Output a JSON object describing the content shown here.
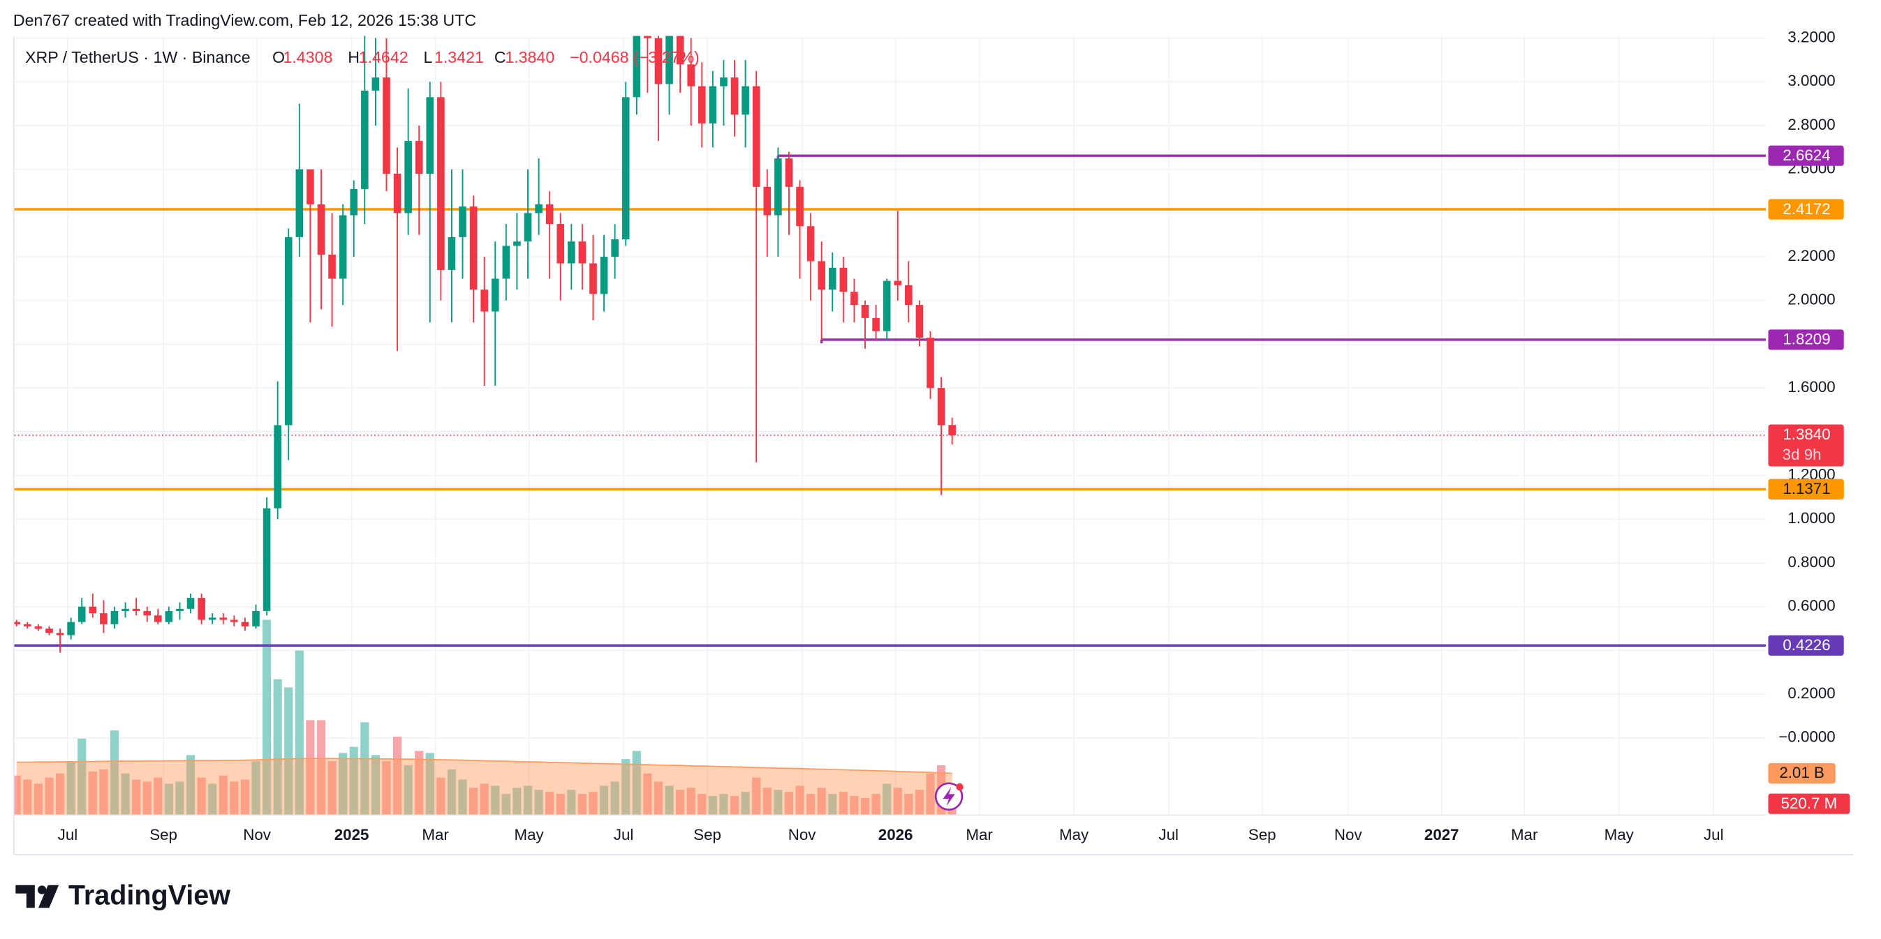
{
  "chart_data": {
    "type": "candlestick",
    "attribution": "Den767 created with TradingView.com, Feb 12, 2026 15:38 UTC",
    "title": "XRP / TetherUS · 1W · Binance",
    "ohlc_letters": [
      "O",
      "H",
      "L",
      "C"
    ],
    "ohlc_labels": [
      "1.4308",
      "1.4642",
      "1.3421",
      "1.3840"
    ],
    "change_label": "−0.0468 (−3.27%)",
    "up_color": "#089981",
    "down_color": "#f23645",
    "open": [
      0.53,
      0.52,
      0.51,
      0.5,
      0.48,
      0.47,
      0.53,
      0.6,
      0.57,
      0.52,
      0.58,
      0.59,
      0.58,
      0.56,
      0.53,
      0.58,
      0.59,
      0.64,
      0.54,
      0.55,
      0.54,
      0.53,
      0.51,
      0.58,
      1.05,
      1.43,
      2.29,
      2.6,
      2.44,
      2.21,
      2.1,
      2.39,
      2.51,
      2.96,
      3.02,
      2.58,
      2.4,
      2.73,
      2.58,
      2.93,
      2.14,
      2.29,
      2.43,
      2.05,
      1.95,
      2.1,
      2.25,
      2.27,
      2.4,
      2.44,
      2.35,
      2.17,
      2.27,
      2.17,
      2.03,
      2.2,
      2.28,
      2.93,
      3.55,
      3.2,
      2.99,
      3.28,
      3.08,
      2.98,
      2.81,
      2.98,
      3.02,
      2.85,
      2.98,
      2.52,
      2.39,
      2.65,
      2.52,
      2.34,
      2.18,
      2.05,
      2.15,
      2.04,
      1.98,
      1.92,
      1.86,
      2.09,
      2.07,
      1.98,
      1.83,
      1.6,
      1.4308
    ],
    "high": [
      0.54,
      0.53,
      0.52,
      0.51,
      0.5,
      0.55,
      0.64,
      0.66,
      0.63,
      0.6,
      0.62,
      0.64,
      0.6,
      0.59,
      0.6,
      0.62,
      0.66,
      0.66,
      0.57,
      0.57,
      0.56,
      0.55,
      0.61,
      1.1,
      1.63,
      2.33,
      2.9,
      2.6,
      2.6,
      2.4,
      2.44,
      2.55,
      3.3,
      3.2,
      3.2,
      2.7,
      2.97,
      2.8,
      3.0,
      3.0,
      2.6,
      2.6,
      2.48,
      2.2,
      2.27,
      2.35,
      2.4,
      2.6,
      2.65,
      2.5,
      2.4,
      2.35,
      2.35,
      2.3,
      2.3,
      2.35,
      3.0,
      3.66,
      3.55,
      3.33,
      3.3,
      3.34,
      3.2,
      3.09,
      3.05,
      3.1,
      3.1,
      3.1,
      3.05,
      2.6,
      2.7,
      2.68,
      2.55,
      2.4,
      2.27,
      2.22,
      2.2,
      2.1,
      2.0,
      1.98,
      2.1,
      2.41,
      2.18,
      2.0,
      1.86,
      1.65,
      1.4642
    ],
    "low": [
      0.51,
      0.5,
      0.49,
      0.47,
      0.39,
      0.45,
      0.52,
      0.55,
      0.48,
      0.5,
      0.55,
      0.56,
      0.53,
      0.52,
      0.52,
      0.54,
      0.57,
      0.52,
      0.52,
      0.52,
      0.51,
      0.49,
      0.5,
      0.56,
      1.0,
      1.27,
      2.2,
      1.9,
      1.96,
      1.88,
      1.98,
      2.2,
      2.35,
      2.8,
      2.5,
      1.77,
      2.3,
      2.3,
      1.9,
      2.0,
      1.9,
      2.1,
      1.9,
      1.61,
      1.61,
      2.0,
      2.05,
      2.1,
      2.3,
      2.1,
      2.0,
      2.05,
      2.05,
      1.91,
      1.95,
      2.1,
      2.25,
      2.85,
      2.95,
      2.73,
      2.85,
      2.95,
      2.8,
      2.7,
      2.7,
      2.8,
      2.75,
      2.7,
      1.26,
      2.2,
      2.2,
      2.3,
      2.1,
      2.0,
      1.82,
      1.95,
      1.9,
      1.9,
      1.78,
      1.82,
      1.82,
      2.0,
      1.9,
      1.79,
      1.55,
      1.11,
      1.3421
    ],
    "close": [
      0.52,
      0.51,
      0.5,
      0.48,
      0.47,
      0.53,
      0.6,
      0.57,
      0.52,
      0.58,
      0.59,
      0.58,
      0.56,
      0.53,
      0.58,
      0.59,
      0.64,
      0.54,
      0.55,
      0.54,
      0.53,
      0.51,
      0.58,
      1.05,
      1.43,
      2.29,
      2.6,
      2.44,
      2.21,
      2.1,
      2.39,
      2.51,
      2.96,
      3.02,
      2.58,
      2.4,
      2.73,
      2.58,
      2.93,
      2.14,
      2.29,
      2.43,
      2.05,
      1.95,
      2.1,
      2.25,
      2.27,
      2.4,
      2.44,
      2.35,
      2.17,
      2.27,
      2.17,
      2.03,
      2.2,
      2.28,
      2.93,
      3.55,
      3.2,
      2.99,
      3.28,
      3.08,
      2.98,
      2.81,
      2.98,
      3.02,
      2.85,
      2.98,
      2.52,
      2.39,
      2.65,
      2.52,
      2.34,
      2.18,
      2.05,
      2.15,
      2.04,
      1.98,
      1.92,
      1.86,
      2.09,
      2.07,
      1.98,
      1.83,
      1.6,
      1.43,
      1.384
    ],
    "xlim": [
      -0.2,
      160.8
    ],
    "xticks": [
      {
        "value": 4.7,
        "label": "Jul"
      },
      {
        "value": 13.5,
        "label": "Sep"
      },
      {
        "value": 22.1,
        "label": "Nov"
      },
      {
        "value": 30.8,
        "label": "2025"
      },
      {
        "value": 38.5,
        "label": "Mar"
      },
      {
        "value": 47.1,
        "label": "May"
      },
      {
        "value": 55.8,
        "label": "Jul"
      },
      {
        "value": 63.5,
        "label": "Sep"
      },
      {
        "value": 72.2,
        "label": "Nov"
      },
      {
        "value": 80.8,
        "label": "2026"
      },
      {
        "value": 88.5,
        "label": "Mar"
      },
      {
        "value": 97.2,
        "label": "May"
      },
      {
        "value": 105.9,
        "label": "Jul"
      },
      {
        "value": 114.5,
        "label": "Sep"
      },
      {
        "value": 122.4,
        "label": "Nov"
      },
      {
        "value": 131.0,
        "label": "2027"
      },
      {
        "value": 138.6,
        "label": "Mar"
      },
      {
        "value": 147.3,
        "label": "May"
      },
      {
        "value": 156.0,
        "label": "Jul"
      }
    ],
    "ylim": [
      -0.35,
      3.21
    ],
    "yticks": [
      {
        "value": 3.2,
        "label": "3.2000"
      },
      {
        "value": 3.0,
        "label": "3.0000"
      },
      {
        "value": 2.8,
        "label": "2.8000"
      },
      {
        "value": 2.6,
        "label": "2.6000"
      },
      {
        "value": 2.4,
        "label": "2.4000"
      },
      {
        "value": 2.2,
        "label": "2.2000"
      },
      {
        "value": 2.0,
        "label": "2.0000"
      },
      {
        "value": 1.8,
        "label": "1.8000"
      },
      {
        "value": 1.6,
        "label": "1.6000"
      },
      {
        "value": 1.4,
        "label": "1.4000"
      },
      {
        "value": 1.2,
        "label": "1.2000"
      },
      {
        "value": 1.0,
        "label": "1.0000"
      },
      {
        "value": 0.8,
        "label": "0.8000"
      },
      {
        "value": 0.6,
        "label": "0.6000"
      },
      {
        "value": 0.4,
        "label": "0.4000"
      },
      {
        "value": 0.2,
        "label": "0.2000"
      },
      {
        "value": 0,
        "label": "−0.0000"
      }
    ],
    "grid": true,
    "levels": [
      {
        "value": 2.6624,
        "color": "#9c27b0",
        "x_start": 70
      },
      {
        "value": 2.4172,
        "color": "#ff9800"
      },
      {
        "value": 1.8209,
        "color": "#9c27b0",
        "x_start": 74
      },
      {
        "value": 1.1371,
        "color": "#ff9800"
      },
      {
        "value": 0.4226,
        "color": "#673ab7"
      }
    ],
    "last_price": {
      "value": 1.384,
      "label": "1.3840",
      "countdown": "3d 9h",
      "color": "#f23645"
    },
    "volume": {
      "ylim": [
        0,
        38
      ],
      "up_color": "#8fd1c9",
      "down_color": "#f7a5a8",
      "ma_color": "#ff9a5c",
      "values": [
        1.9,
        1.7,
        1.5,
        1.8,
        2.0,
        2.6,
        3.7,
        2.1,
        2.2,
        4.1,
        2.0,
        1.7,
        1.6,
        1.8,
        1.5,
        1.6,
        2.9,
        1.8,
        1.5,
        1.9,
        1.6,
        1.7,
        2.6,
        9.5,
        6.6,
        6.2,
        8.0,
        4.6,
        4.6,
        2.6,
        3.0,
        3.3,
        4.5,
        2.9,
        2.6,
        3.8,
        2.4,
        3.1,
        3.0,
        1.8,
        2.2,
        1.7,
        1.3,
        1.5,
        1.4,
        1.0,
        1.3,
        1.4,
        1.2,
        1.1,
        1.0,
        1.2,
        1.0,
        1.1,
        1.4,
        1.6,
        2.7,
        3.1,
        2.0,
        1.6,
        1.4,
        1.2,
        1.3,
        1.0,
        0.9,
        1.0,
        0.9,
        1.1,
        1.8,
        1.3,
        1.2,
        1.1,
        1.4,
        1.0,
        1.3,
        1.0,
        1.1,
        0.9,
        0.8,
        1.0,
        1.5,
        1.3,
        1.0,
        1.2,
        2.0,
        2.4,
        0.5207
      ],
      "ma": [
        2.55,
        2.55,
        2.56,
        2.56,
        2.57,
        2.57,
        2.58,
        2.58,
        2.59,
        2.6,
        2.6,
        2.6,
        2.61,
        2.61,
        2.62,
        2.62,
        2.63,
        2.63,
        2.63,
        2.64,
        2.64,
        2.65,
        2.66,
        2.68,
        2.7,
        2.71,
        2.72,
        2.73,
        2.73,
        2.73,
        2.72,
        2.72,
        2.72,
        2.71,
        2.71,
        2.7,
        2.7,
        2.69,
        2.68,
        2.67,
        2.66,
        2.65,
        2.64,
        2.62,
        2.61,
        2.6,
        2.58,
        2.57,
        2.56,
        2.54,
        2.53,
        2.52,
        2.5,
        2.49,
        2.48,
        2.47,
        2.45,
        2.44,
        2.43,
        2.41,
        2.4,
        2.39,
        2.37,
        2.36,
        2.35,
        2.33,
        2.32,
        2.31,
        2.29,
        2.28,
        2.26,
        2.25,
        2.24,
        2.22,
        2.21,
        2.19,
        2.18,
        2.16,
        2.15,
        2.13,
        2.12,
        2.1,
        2.08,
        2.07,
        2.05,
        2.03,
        2.01
      ],
      "ma_label": "2.01 B",
      "last_label": "520.7 M"
    },
    "brand": "TradingView"
  }
}
